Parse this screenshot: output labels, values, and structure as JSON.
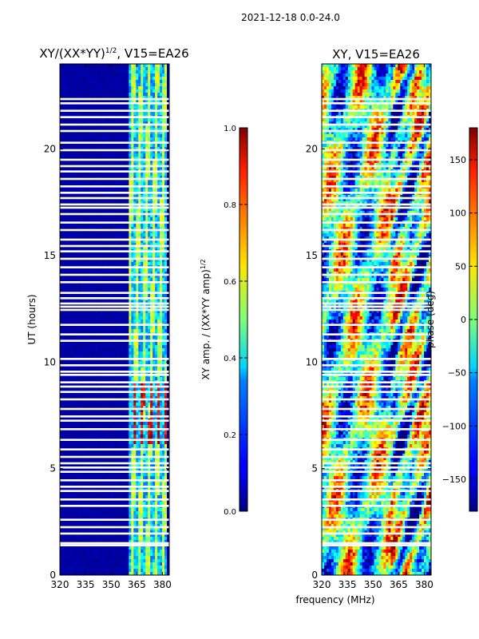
{
  "figure": {
    "suptitle": "2021-12-18 0.0-24.0",
    "shared_xlabel": "frequency (MHz)"
  },
  "chart_data": [
    {
      "type": "heatmap",
      "id": "left",
      "title_text": "XY/(XX*YY)",
      "title_sup": "1/2",
      "title_tail": ", V15=EA26",
      "xlabel": "frequency (MHz)",
      "ylabel": "UT (hours)",
      "xlim": [
        320,
        384
      ],
      "ylim": [
        0,
        24
      ],
      "xticks": [
        320,
        335,
        350,
        365,
        380
      ],
      "yticks": [
        0,
        5,
        10,
        15,
        20
      ],
      "signal_band_mhz": [
        361,
        383
      ],
      "colorbar": {
        "label_text": "XY amp. / (XX*YY amp)",
        "label_sup": "1/2",
        "range": [
          0.0,
          1.0
        ],
        "ticks": [
          0.0,
          0.2,
          0.4,
          0.6,
          0.8,
          1.0
        ],
        "tick_labels": [
          "0.0",
          "0.2",
          "0.4",
          "0.6",
          "0.8",
          "1.0"
        ]
      }
    },
    {
      "type": "heatmap",
      "id": "right",
      "title": "XY, V15=EA26",
      "xlim": [
        320,
        384
      ],
      "ylim": [
        0,
        24
      ],
      "xticks": [
        320,
        335,
        350,
        365,
        380
      ],
      "yticks": [
        0,
        5,
        10,
        15,
        20
      ],
      "colorbar": {
        "label": "phase (deg)",
        "range": [
          -180,
          180
        ],
        "ticks": [
          -150,
          -100,
          -50,
          0,
          50,
          100,
          150
        ],
        "tick_labels": [
          "−150",
          "−100",
          "−50",
          "0",
          "50",
          "100",
          "150"
        ]
      }
    }
  ],
  "flagged_hours": [
    1.4,
    1.5,
    1.95,
    2.25,
    2.6,
    3.25,
    3.55,
    3.95,
    4.15,
    4.45,
    4.85,
    5.05,
    5.25,
    5.55,
    5.9,
    6.35,
    6.85,
    7.25,
    7.45,
    7.8,
    8.25,
    8.6,
    8.85,
    9.05,
    9.4,
    9.55,
    9.85,
    10.15,
    11.0,
    11.3,
    11.75,
    12.45,
    12.6,
    12.75,
    13.0,
    13.25,
    13.75,
    14.1,
    14.45,
    14.85,
    15.2,
    15.45,
    15.75,
    16.2,
    16.55,
    16.95,
    17.25,
    17.4,
    17.7,
    17.95,
    18.25,
    18.6,
    18.95,
    19.2,
    19.5,
    19.95,
    20.3,
    20.85,
    21.15,
    21.5,
    21.8,
    22.15,
    22.35
  ]
}
